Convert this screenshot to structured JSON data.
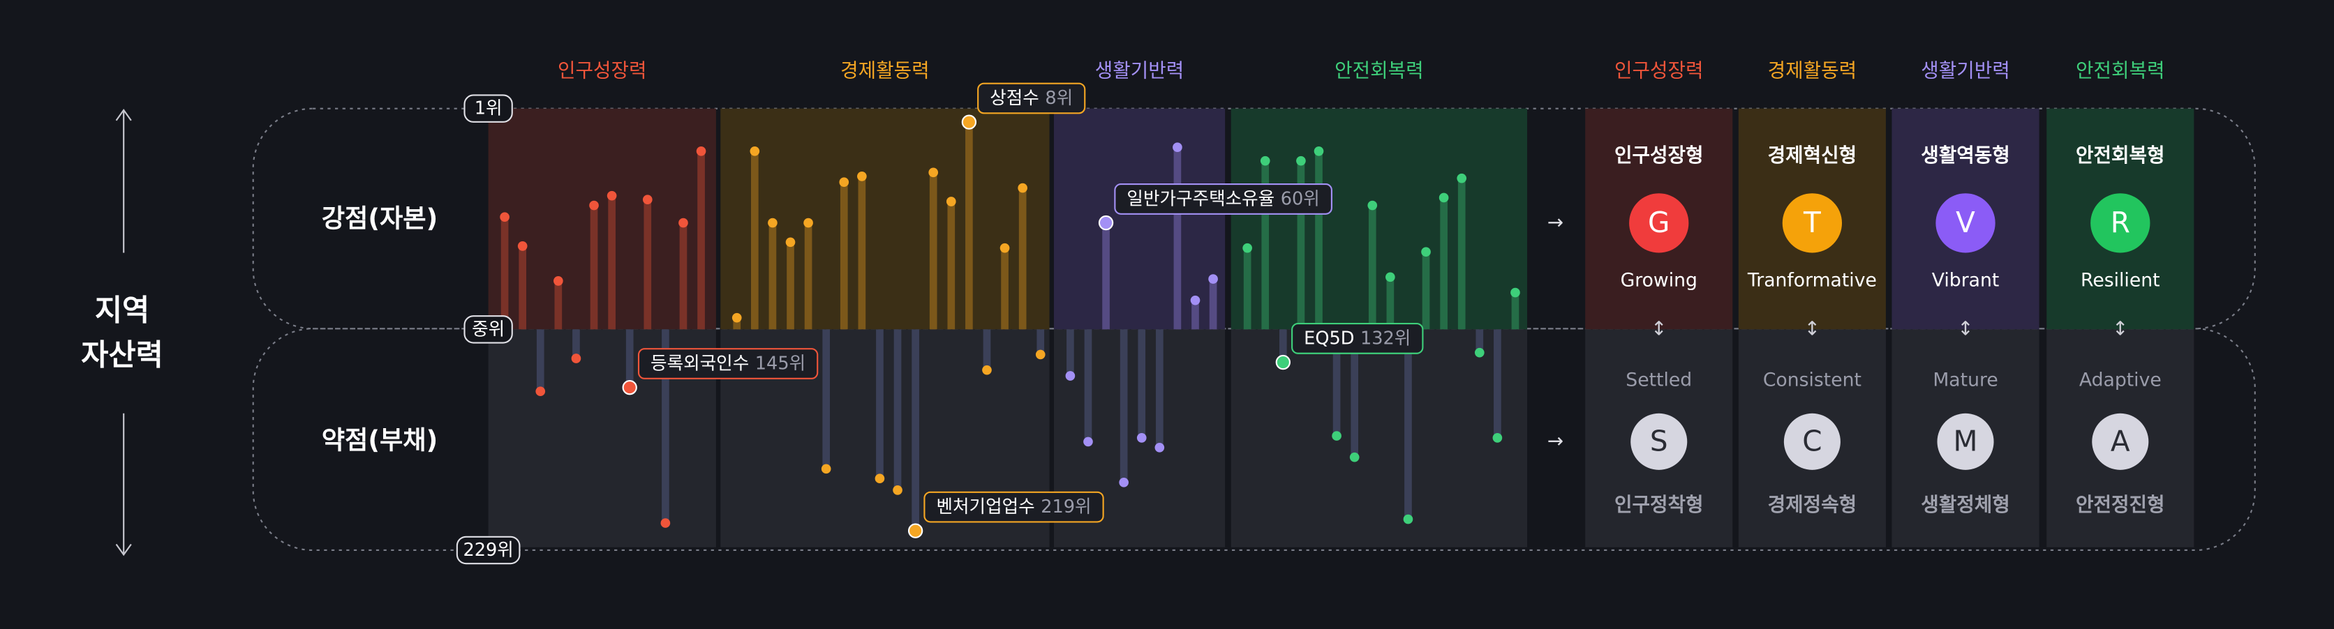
{
  "title": [
    "지역",
    "자산력"
  ],
  "rows": {
    "strong": "강점(자본)",
    "weak": "약점(부채)"
  },
  "ylim": [
    1,
    229
  ],
  "yticks": [
    {
      "value": 1,
      "label": "1위"
    },
    {
      "value": 115,
      "label": "중위"
    },
    {
      "value": 229,
      "label": "229위"
    }
  ],
  "groups": [
    {
      "name": "인구성장력",
      "color": "#f0553a",
      "panel": "#3b1f20",
      "items": [
        {
          "rank": 57
        },
        {
          "rank": 72
        },
        {
          "rank": 147
        },
        {
          "rank": 90
        },
        {
          "rank": 130
        },
        {
          "rank": 51
        },
        {
          "rank": 46
        },
        {
          "rank": 145,
          "name": "등록외국인수",
          "rank_label": "145위"
        },
        {
          "rank": 48
        },
        {
          "rank": 215
        },
        {
          "rank": 60
        },
        {
          "rank": 23
        }
      ]
    },
    {
      "name": "경제활동력",
      "color": "#f5a623",
      "panel": "#3b2f16",
      "items": [
        {
          "rank": 109
        },
        {
          "rank": 23
        },
        {
          "rank": 60
        },
        {
          "rank": 70
        },
        {
          "rank": 60
        },
        {
          "rank": 187
        },
        {
          "rank": 39
        },
        {
          "rank": 36
        },
        {
          "rank": 192
        },
        {
          "rank": 198
        },
        {
          "rank": 219,
          "name": "벤처기업업수",
          "rank_label": "219위"
        },
        {
          "rank": 34
        },
        {
          "rank": 49
        },
        {
          "rank": 8,
          "name": "상점수",
          "rank_label": "8위"
        },
        {
          "rank": 136
        },
        {
          "rank": 73
        },
        {
          "rank": 42
        },
        {
          "rank": 128
        }
      ]
    },
    {
      "name": "생활기반력",
      "color": "#a390f5",
      "panel": "#2c2745",
      "items": [
        {
          "rank": 139
        },
        {
          "rank": 173
        },
        {
          "rank": 60,
          "name": "일반가구주택소유율",
          "rank_label": "60위"
        },
        {
          "rank": 194
        },
        {
          "rank": 171
        },
        {
          "rank": 176
        },
        {
          "rank": 21
        },
        {
          "rank": 100
        },
        {
          "rank": 89
        }
      ]
    },
    {
      "name": "안전회복력",
      "color": "#3ecf7a",
      "panel": "#173a2b",
      "items": [
        {
          "rank": 73
        },
        {
          "rank": 28
        },
        {
          "rank": 132,
          "name": "EQ5D",
          "rank_label": "132위"
        },
        {
          "rank": 28
        },
        {
          "rank": 23
        },
        {
          "rank": 170
        },
        {
          "rank": 181
        },
        {
          "rank": 51
        },
        {
          "rank": 88
        },
        {
          "rank": 213
        },
        {
          "rank": 75
        },
        {
          "rank": 47
        },
        {
          "rank": 37
        },
        {
          "rank": 127
        },
        {
          "rank": 171
        },
        {
          "rank": 96
        }
      ]
    }
  ],
  "types": [
    {
      "header": "인구성장력",
      "color": "#f0553a",
      "circle": "#f03c3c",
      "panel": "#3a1e20",
      "strong": {
        "title": "인구성장형",
        "letter": "G",
        "en": "Growing"
      },
      "weak": {
        "en": "Settled",
        "letter": "S",
        "title": "인구정착형"
      }
    },
    {
      "header": "경제활동력",
      "color": "#f5a623",
      "circle": "#f5a20a",
      "panel": "#3b2e16",
      "strong": {
        "title": "경제혁신형",
        "letter": "T",
        "en": "Tranformative"
      },
      "weak": {
        "en": "Consistent",
        "letter": "C",
        "title": "경제정속형"
      }
    },
    {
      "header": "생활기반력",
      "color": "#a390f5",
      "circle": "#8b5cf6",
      "panel": "#2d2745",
      "strong": {
        "title": "생활역동형",
        "letter": "V",
        "en": "Vibrant"
      },
      "weak": {
        "en": "Mature",
        "letter": "M",
        "title": "생활정체형"
      }
    },
    {
      "header": "안전회복력",
      "color": "#3ecf7a",
      "circle": "#22c55e",
      "panel": "#173a2b",
      "strong": {
        "title": "안전회복형",
        "letter": "R",
        "en": "Resilient"
      },
      "weak": {
        "en": "Adaptive",
        "letter": "A",
        "title": "안전정진형"
      }
    }
  ]
}
